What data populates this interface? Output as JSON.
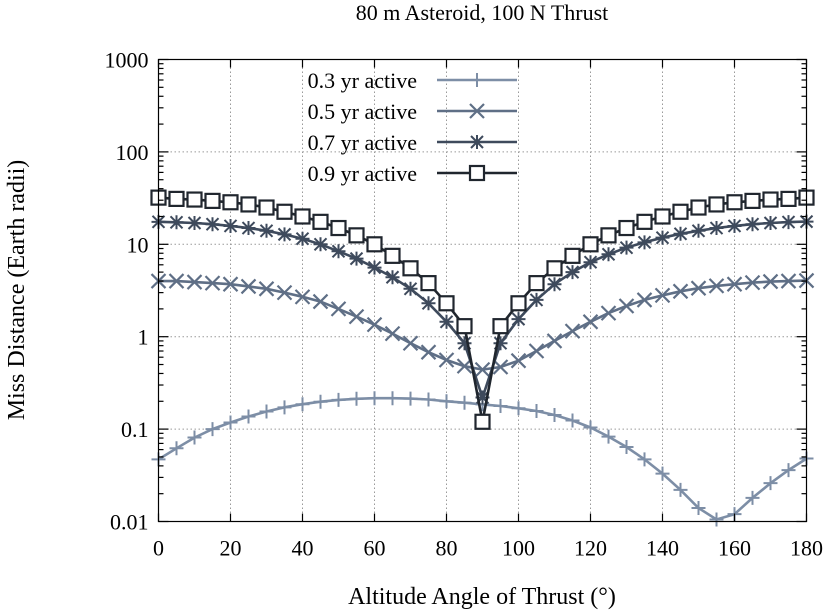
{
  "chart_data": {
    "type": "line",
    "title": "80 m Asteroid, 100 N Thrust",
    "xlabel": "Altitude Angle of Thrust (°)",
    "ylabel": "Miss Distance (Earth radii)",
    "xlim": [
      0,
      180
    ],
    "ylim": [
      0.01,
      1000
    ],
    "yscale": "log",
    "grid": true,
    "legend_position": "top-left",
    "x_ticks": [
      "0",
      "20",
      "40",
      "60",
      "80",
      "100",
      "120",
      "140",
      "160",
      "180"
    ],
    "y_ticks": [
      "0.01",
      "0.1",
      "1",
      "10",
      "100",
      "1000"
    ],
    "x": [
      0,
      5,
      10,
      15,
      20,
      25,
      30,
      35,
      40,
      45,
      50,
      55,
      60,
      65,
      70,
      75,
      80,
      85,
      90,
      95,
      100,
      105,
      110,
      115,
      120,
      125,
      130,
      135,
      140,
      145,
      150,
      155,
      160,
      165,
      170,
      175,
      180
    ],
    "series": [
      {
        "name": "0.3 yr active",
        "color": "#7d8ea6",
        "marker": "plus",
        "values": [
          0.047,
          0.062,
          0.081,
          0.1,
          0.118,
          0.137,
          0.155,
          0.172,
          0.186,
          0.198,
          0.207,
          0.213,
          0.216,
          0.216,
          0.214,
          0.209,
          0.2,
          0.193,
          0.185,
          0.178,
          0.168,
          0.157,
          0.142,
          0.124,
          0.104,
          0.083,
          0.064,
          0.047,
          0.033,
          0.022,
          0.014,
          0.0105,
          0.012,
          0.018,
          0.026,
          0.036,
          0.048
        ]
      },
      {
        "name": "0.5 yr active",
        "color": "#5f6f86",
        "marker": "x",
        "values": [
          4.0,
          4.0,
          3.9,
          3.8,
          3.7,
          3.5,
          3.3,
          3.0,
          2.7,
          2.4,
          2.0,
          1.65,
          1.35,
          1.08,
          0.85,
          0.68,
          0.56,
          0.48,
          0.44,
          0.47,
          0.55,
          0.7,
          0.9,
          1.15,
          1.45,
          1.8,
          2.15,
          2.5,
          2.8,
          3.1,
          3.35,
          3.55,
          3.7,
          3.85,
          3.95,
          4.0,
          4.05
        ]
      },
      {
        "name": "0.7 yr active",
        "color": "#3e4a5c",
        "marker": "star",
        "values": [
          17.5,
          17.3,
          17.0,
          16.5,
          15.8,
          15.0,
          14.0,
          12.8,
          11.5,
          10.0,
          8.4,
          7.0,
          5.6,
          4.4,
          3.3,
          2.3,
          1.45,
          0.85,
          0.22,
          0.85,
          1.55,
          2.5,
          3.7,
          5.0,
          6.4,
          7.8,
          9.2,
          10.5,
          11.8,
          13.0,
          14.0,
          15.0,
          15.8,
          16.5,
          17.0,
          17.4,
          17.6
        ]
      },
      {
        "name": "0.9 yr active",
        "color": "#20262e",
        "marker": "square",
        "values": [
          32,
          31,
          30.5,
          29.5,
          28.5,
          27,
          25,
          22.5,
          20,
          17.5,
          15,
          12.5,
          10,
          7.5,
          5.5,
          3.8,
          2.3,
          1.3,
          0.12,
          1.3,
          2.3,
          3.8,
          5.5,
          7.5,
          10,
          12.5,
          15,
          17.5,
          20,
          22.5,
          25,
          27,
          28.5,
          29.5,
          30.5,
          31,
          32
        ]
      }
    ]
  }
}
